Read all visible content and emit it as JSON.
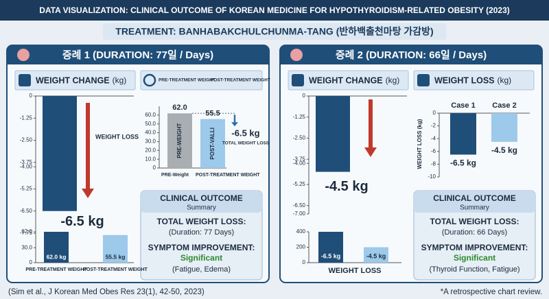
{
  "header": {
    "title": "DATA VISUALIZATION: CLINICAL OUTCOME OF KOREAN MEDICINE FOR HYPOTHYROIDISM-RELATED OBESITY (2023)",
    "subtitle": "TREATMENT: BANHABAKCHULCHUNMA-TANG (반하백출천마탕 가감방)"
  },
  "cases": [
    {
      "title": "증례 1 (DURATION: 77일 / Days)",
      "weight_change": {
        "type": "bar",
        "title": "WEIGHT CHANGE",
        "unit": "(kg)",
        "ylim": [
          -7.75,
          0
        ],
        "yticks": [
          0,
          {
            "value": -1.25,
            "label": "-1.25"
          },
          {
            "value": -2.5,
            "label": "-2.50"
          },
          {
            "value": -3.75,
            "label": "-3.75"
          },
          {
            "value": -4,
            "label": "-4.00"
          },
          {
            "value": -5.25,
            "label": "-5.25"
          },
          {
            "value": -6.5,
            "label": "-6.50"
          },
          {
            "value": -7.75,
            "label": "-7.75"
          }
        ],
        "values": [
          -6.5
        ],
        "value_labels": [
          "-6.5 kg"
        ],
        "colors": [
          "#1f4e79"
        ],
        "annotation": "WEIGHT LOSS"
      },
      "weights": {
        "type": "bar",
        "categories": [
          "PRE-TREATMENT WEIGHT",
          "POST-TREATMENT WEIGHT"
        ],
        "ylim": [
          0,
          62
        ],
        "yticks": [
          0,
          {
            "value": 30,
            "label": "30.0"
          },
          {
            "value": 62,
            "label": "62.0"
          }
        ],
        "values": [
          62,
          55.5
        ],
        "value_labels": [
          "62.0 kg",
          "55.5 kg"
        ],
        "colors": [
          "#1f4e79",
          "#9dc9ea"
        ]
      },
      "comparison": {
        "type": "bar",
        "legend": [
          "PRE-TREATMENT WEIGHT",
          "POST-TREATMENT WEIGHT"
        ],
        "categories": [
          "PRE-Weight",
          "POST-TREATMENT WEIGHT"
        ],
        "bar_texts": [
          "PRE-WEIGHT",
          "POST-VALLI"
        ],
        "ylim": [
          0,
          70
        ],
        "yticks": [
          0,
          {
            "value": 10,
            "label": "10.0"
          },
          {
            "value": 20,
            "label": "20.0"
          },
          {
            "value": 30,
            "label": "30.0"
          },
          {
            "value": 40,
            "label": "40.0"
          },
          {
            "value": 50,
            "label": "50.0"
          },
          {
            "value": 60,
            "label": "60.0"
          }
        ],
        "values": [
          62,
          55.5
        ],
        "value_labels": [
          "62.0",
          "55.5"
        ],
        "colors": [
          "#a9aeb3",
          "#9dc9ea"
        ],
        "annotation": "-6.5 kg",
        "annotation_note": "TOTAL WEIGHT LOSS"
      },
      "outcome": {
        "title": "CLINICAL OUTCOME",
        "subtitle": "Summary",
        "loss_label": "TOTAL WEIGHT LOSS:",
        "duration": "(Duration: 77 Days)",
        "symptom_label": "SYMPTOM IMPROVEMENT:",
        "result": "Significant",
        "details": "(Fatigue, Edema)"
      }
    },
    {
      "title": "증례 2 (DURATION: 66일 / Days)",
      "weight_change": {
        "type": "bar",
        "title": "WEIGHT CHANGE",
        "unit": "(kg)",
        "ylim": [
          -7,
          0
        ],
        "yticks": [
          0,
          {
            "value": -1.25,
            "label": "-1.25"
          },
          {
            "value": -2.5,
            "label": "-2.50"
          },
          {
            "value": -3.75,
            "label": "-3.75"
          },
          {
            "value": -4,
            "label": "-4.00"
          },
          {
            "value": -5.25,
            "label": "-5.25"
          },
          {
            "value": -6.5,
            "label": "-6.50"
          },
          {
            "value": -7,
            "label": "-7.00"
          }
        ],
        "values": [
          -4.5
        ],
        "value_labels": [
          "-4.5 kg"
        ],
        "colors": [
          "#1f4e79"
        ]
      },
      "loss_bars": {
        "type": "bar",
        "xlabel": "WEIGHT LOSS",
        "ylim": [
          0,
          400
        ],
        "yticks": [
          0,
          200,
          400
        ],
        "values": [
          400,
          200
        ],
        "bar_texts": [
          "-6.5 kg",
          "-4.5 kg"
        ],
        "colors": [
          "#1f4e79",
          "#9dc9ea"
        ]
      },
      "weight_loss": {
        "type": "bar",
        "title": "WEIGHT LOSS",
        "unit": "(kg)",
        "ylabel": "WEIGHT LOSS (kg)",
        "categories": [
          "Case 1",
          "Case 2"
        ],
        "ylim": [
          -10,
          0
        ],
        "yticks": [
          0,
          -2,
          -4,
          -6,
          -8,
          -10
        ],
        "values": [
          -6.5,
          -4.5
        ],
        "value_labels": [
          "-6.5 kg",
          "-4.5 kg"
        ],
        "colors": [
          "#1f4e79",
          "#9dc9ea"
        ]
      },
      "outcome": {
        "title": "CLINICAL OUTCOME",
        "subtitle": "Summary",
        "loss_label": "TOTAL WEIGHT LOSS:",
        "duration": "(Duration: 66 Days)",
        "symptom_label": "SYMPTOM IMPROVEMENT:",
        "result": "Significant",
        "details": "(Thyroid Function, Fatigue)"
      }
    }
  ],
  "footer": {
    "citation": "(Sim et al., J Korean Med Obes Res 23(1), 42-50, 2023)",
    "note": "*A retrospective chart review."
  }
}
